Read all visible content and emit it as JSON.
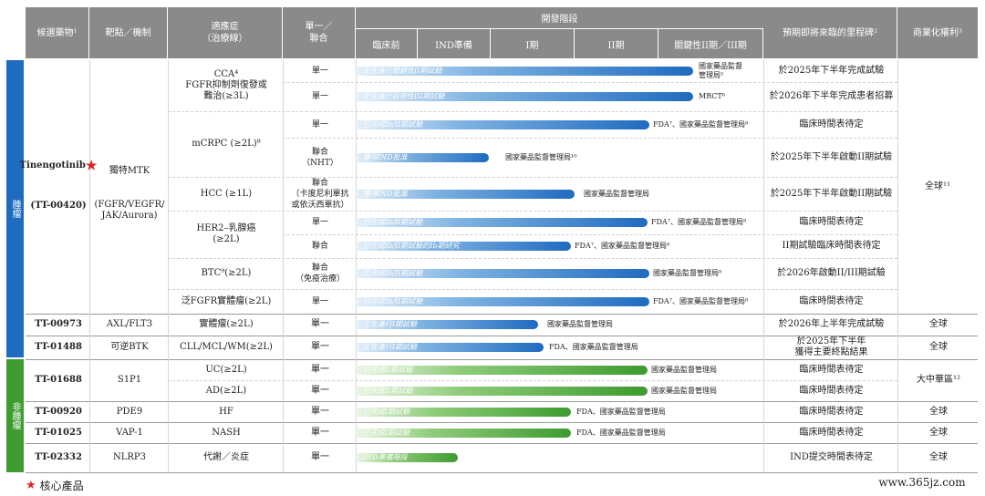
{
  "colors": {
    "header": "#8a8a8a",
    "core": "#1f6bc0",
    "other": "#3d9b2f",
    "star": "#d9252a"
  },
  "headers": {
    "candidate": "候選藥物¹",
    "target": "靶點／機制",
    "indication": "適應症\n（治療線）",
    "mono_combo": "單一／\n聯合",
    "phase_title": "開發階段",
    "phases": [
      "臨床前",
      "IND準備",
      "I期",
      "II期",
      "關鍵性II期／III期"
    ],
    "milestone": "預期即將來臨的里程碑²",
    "rights": "商業化權利³"
  },
  "side_labels": {
    "core": "腫瘤",
    "other": "非腫瘤"
  },
  "tinengotinib": {
    "name": "Tinengotinib",
    "code": "(TT-00420)",
    "target": "獨特MTK",
    "target_detail": "(FGFR/VEGFR/\nJAK/Aurora)",
    "rights": "全球¹¹"
  },
  "tin_rows": [
    {
      "indication": "CCA⁴\nFGFR抑制劑復發或\n難治(≥3L)",
      "mode": "單一",
      "bar_text": "正在進行關鍵性II期試驗",
      "reg": "國家藥品監督\n管理局⁵",
      "milestone": "於2025年下半年完成試驗"
    },
    {
      "indication": "",
      "mode": "單一",
      "bar_text": "正在進行註冊性III期試驗",
      "reg": "MRCT⁶",
      "milestone": "於2026年下半年完成患者招募"
    },
    {
      "indication": "mCRPC (≥2L)⁸",
      "mode": "單一",
      "bar_text": "已完成Ib/II期試驗",
      "reg": "FDA⁷、國家藥品監督管理局⁸",
      "milestone": "臨床時間表待定"
    },
    {
      "indication": "",
      "mode": "聯合\n（NHT）",
      "bar_text": "獲得IND批准",
      "reg": "國家藥品監督管理局¹⁰",
      "milestone": "於2025年下半年啟動II期試驗"
    },
    {
      "indication": "HCC (≥1L)",
      "mode": "聯合\n（卡度尼利單抗\n或依沃西單抗）",
      "bar_text": "獲得IND批准",
      "reg": "國家藥品監督管理局",
      "milestone": "於2025年下半年啟動II期試驗"
    },
    {
      "indication": "HER2–乳腺癌\n(≥2L)",
      "mode": "單一",
      "bar_text": "已完成Ib/II期試驗",
      "reg": "FDA⁷、國家藥品監督管理局⁸",
      "milestone": "臨床時間表待定"
    },
    {
      "indication": "",
      "mode": "聯合",
      "bar_text": "已完成Ib/II期試驗的Ib期研究",
      "reg": "FDA⁷、國家藥品監督管理局⁸",
      "milestone": "II期試驗臨床時間表待定"
    },
    {
      "indication": "BTC⁹(≥2L)",
      "mode": "聯合\n（免疫治療）",
      "bar_text": "已完成Ib/II期試驗",
      "reg": "國家藥品監督管理局⁸",
      "milestone": "於2026年啟動II/III期試驗"
    },
    {
      "indication": "泛FGFR實體瘤(≥2L)",
      "mode": "單一",
      "bar_text": "已完成Ib/II期試驗",
      "reg": "FDA⁷、國家藥品監督管理局⁸",
      "milestone": "臨床時間表待定"
    }
  ],
  "other_core": [
    {
      "code": "TT-00973",
      "target": "AXL/FLT3",
      "indication": "實體瘤(≥2L)",
      "mode": "單一",
      "bar_text": "正在進行I期試驗",
      "reg": "國家藥品監督管理局",
      "milestone": "於2026年上半年完成試驗",
      "rights": "全球"
    },
    {
      "code": "TT-01488",
      "target": "可逆BTK",
      "indication": "CLL/MCL/WM(≥2L)",
      "mode": "單一",
      "bar_text": "正在進行I期試驗",
      "reg": "FDA、國家藥品監督管理局",
      "milestone": "於2025年下半年\n獲得主要終點結果",
      "rights": "全球"
    }
  ],
  "s1p1": {
    "code": "TT-01688",
    "target": "S1P1",
    "rights": "大中華區¹²",
    "rows": [
      {
        "indication": "UC(≥2L)",
        "mode": "單一",
        "bar_text": "已完成II期試驗",
        "reg": "國家藥品監督管理局",
        "milestone": "臨床時間表待定"
      },
      {
        "indication": "AD(≥2L)",
        "mode": "單一",
        "bar_text": "已完成II期試驗",
        "reg": "國家藥品監督管理局",
        "milestone": "臨床時間表待定"
      }
    ]
  },
  "noncore": [
    {
      "code": "TT-00920",
      "target": "PDE9",
      "indication": "HF",
      "mode": "單一",
      "bar_text": "已完成I期試驗",
      "reg": "FDA、國家藥品監督管理局",
      "milestone": "臨床時間表待定",
      "rights": "全球"
    },
    {
      "code": "TT-01025",
      "target": "VAP-1",
      "indication": "NASH",
      "mode": "單一",
      "bar_text": "已完成I期試驗",
      "reg": "FDA、國家藥品監督管理局",
      "milestone": "臨床時間表待定",
      "rights": "全球"
    },
    {
      "code": "TT-02332",
      "target": "NLRP3",
      "indication": "代謝／炎症",
      "mode": "單一",
      "bar_text": "IND準備階段",
      "reg": "",
      "milestone": "IND提交時間表待定",
      "rights": "全球"
    }
  ],
  "legend": {
    "text": "核心產品"
  },
  "watermark": "www.365jz.com"
}
